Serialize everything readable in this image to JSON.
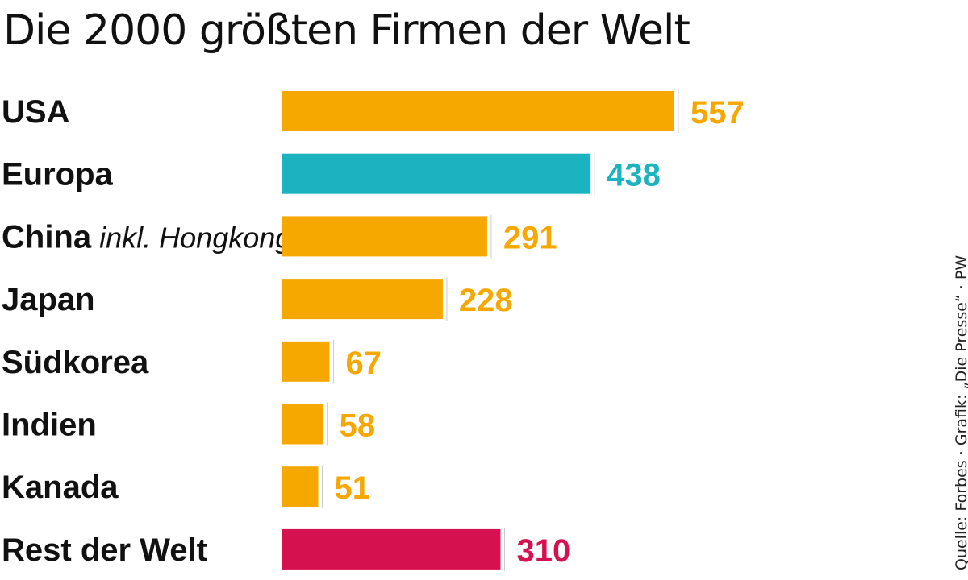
{
  "title": "Die 2000 größten Firmen der Welt",
  "source": "Quelle: Forbes · Grafik: „Die Presse“ · PW",
  "colors": {
    "default": "#f6a800",
    "europe": "#1bb3c0",
    "rest": "#d6114f",
    "rule": "#cccccc"
  },
  "chart_data": {
    "type": "bar",
    "orientation": "horizontal",
    "title": "Die 2000 größten Firmen der Welt",
    "xlabel": "",
    "ylabel": "",
    "grid": false,
    "categories": [
      "USA",
      "Europa",
      "China inkl. Hongkong",
      "Japan",
      "Südkorea",
      "Indien",
      "Kanada",
      "Rest der Welt"
    ],
    "items": [
      {
        "label": "USA",
        "note": "",
        "value": 557,
        "color": "#f6a800"
      },
      {
        "label": "Europa",
        "note": "",
        "value": 438,
        "color": "#1bb3c0"
      },
      {
        "label": "China",
        "note": "inkl. Hongkong",
        "value": 291,
        "color": "#f6a800"
      },
      {
        "label": "Japan",
        "note": "",
        "value": 228,
        "color": "#f6a800"
      },
      {
        "label": "Südkorea",
        "note": "",
        "value": 67,
        "color": "#f6a800"
      },
      {
        "label": "Indien",
        "note": "",
        "value": 58,
        "color": "#f6a800"
      },
      {
        "label": "Kanada",
        "note": "",
        "value": 51,
        "color": "#f6a800"
      },
      {
        "label": "Rest der Welt",
        "note": "",
        "value": 310,
        "color": "#d6114f"
      }
    ],
    "values": [
      557,
      438,
      291,
      228,
      67,
      58,
      51,
      310
    ],
    "xlim": [
      0,
      557
    ]
  }
}
